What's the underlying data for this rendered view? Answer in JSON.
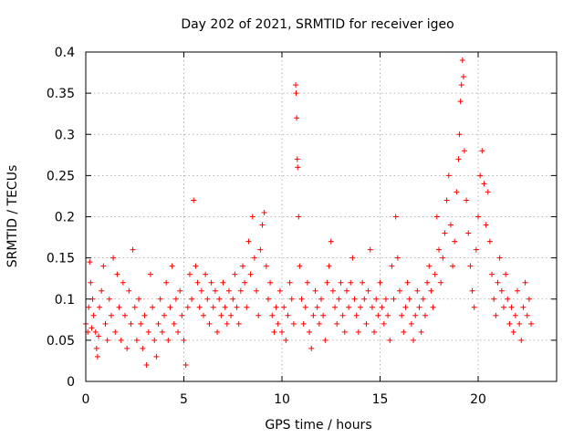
{
  "chart_data": {
    "type": "scatter",
    "title": "Day 202 of 2021, SRMTID for receiver igeo",
    "xlabel": "GPS time / hours",
    "ylabel": "SRMTID / TECUs",
    "xlim": [
      0,
      24
    ],
    "ylim": [
      0,
      0.4
    ],
    "x_ticks": [
      0,
      5,
      10,
      15,
      20
    ],
    "x_tick_labels": [
      "0",
      "5",
      "10",
      "15",
      "20"
    ],
    "y_ticks": [
      0,
      0.05,
      0.1,
      0.15,
      0.2,
      0.25,
      0.3,
      0.35,
      0.4
    ],
    "y_tick_labels": [
      "0",
      "0.05",
      "0.1",
      "0.15",
      "0.2",
      "0.25",
      "0.3",
      "0.35",
      "0.4"
    ],
    "grid": true,
    "marker": "+",
    "series": [
      {
        "name": "SRMTID",
        "color": "#ff0000",
        "points": [
          [
            0.0,
            0.07
          ],
          [
            0.1,
            0.06
          ],
          [
            0.15,
            0.09
          ],
          [
            0.2,
            0.145
          ],
          [
            0.25,
            0.12
          ],
          [
            0.3,
            0.065
          ],
          [
            0.35,
            0.1
          ],
          [
            0.4,
            0.08
          ],
          [
            0.5,
            0.06
          ],
          [
            0.55,
            0.04
          ],
          [
            0.6,
            0.03
          ],
          [
            0.65,
            0.055
          ],
          [
            0.7,
            0.09
          ],
          [
            0.8,
            0.11
          ],
          [
            0.9,
            0.14
          ],
          [
            1.0,
            0.07
          ],
          [
            1.1,
            0.05
          ],
          [
            1.2,
            0.1
          ],
          [
            1.3,
            0.08
          ],
          [
            1.4,
            0.15
          ],
          [
            1.5,
            0.06
          ],
          [
            1.6,
            0.13
          ],
          [
            1.7,
            0.09
          ],
          [
            1.8,
            0.05
          ],
          [
            1.9,
            0.12
          ],
          [
            2.0,
            0.08
          ],
          [
            2.1,
            0.04
          ],
          [
            2.2,
            0.11
          ],
          [
            2.3,
            0.07
          ],
          [
            2.4,
            0.16
          ],
          [
            2.5,
            0.09
          ],
          [
            2.6,
            0.05
          ],
          [
            2.7,
            0.1
          ],
          [
            2.8,
            0.07
          ],
          [
            2.9,
            0.04
          ],
          [
            3.0,
            0.08
          ],
          [
            3.1,
            0.02
          ],
          [
            3.2,
            0.06
          ],
          [
            3.3,
            0.13
          ],
          [
            3.4,
            0.09
          ],
          [
            3.5,
            0.05
          ],
          [
            3.6,
            0.03
          ],
          [
            3.7,
            0.07
          ],
          [
            3.8,
            0.1
          ],
          [
            3.9,
            0.06
          ],
          [
            4.0,
            0.08
          ],
          [
            4.1,
            0.12
          ],
          [
            4.2,
            0.05
          ],
          [
            4.3,
            0.09
          ],
          [
            4.4,
            0.14
          ],
          [
            4.5,
            0.07
          ],
          [
            4.6,
            0.1
          ],
          [
            4.7,
            0.06
          ],
          [
            4.8,
            0.11
          ],
          [
            4.9,
            0.08
          ],
          [
            5.0,
            0.05
          ],
          [
            5.1,
            0.02
          ],
          [
            5.2,
            0.09
          ],
          [
            5.3,
            0.13
          ],
          [
            5.4,
            0.1
          ],
          [
            5.5,
            0.22
          ],
          [
            5.6,
            0.14
          ],
          [
            5.7,
            0.12
          ],
          [
            5.8,
            0.09
          ],
          [
            5.9,
            0.11
          ],
          [
            6.0,
            0.08
          ],
          [
            6.1,
            0.13
          ],
          [
            6.2,
            0.1
          ],
          [
            6.3,
            0.07
          ],
          [
            6.4,
            0.12
          ],
          [
            6.5,
            0.09
          ],
          [
            6.6,
            0.11
          ],
          [
            6.7,
            0.06
          ],
          [
            6.8,
            0.1
          ],
          [
            6.9,
            0.08
          ],
          [
            7.0,
            0.12
          ],
          [
            7.1,
            0.09
          ],
          [
            7.2,
            0.07
          ],
          [
            7.3,
            0.11
          ],
          [
            7.4,
            0.08
          ],
          [
            7.5,
            0.1
          ],
          [
            7.6,
            0.13
          ],
          [
            7.7,
            0.09
          ],
          [
            7.8,
            0.07
          ],
          [
            7.9,
            0.11
          ],
          [
            8.0,
            0.14
          ],
          [
            8.1,
            0.12
          ],
          [
            8.2,
            0.09
          ],
          [
            8.3,
            0.17
          ],
          [
            8.4,
            0.13
          ],
          [
            8.5,
            0.2
          ],
          [
            8.6,
            0.15
          ],
          [
            8.7,
            0.11
          ],
          [
            8.8,
            0.08
          ],
          [
            8.9,
            0.16
          ],
          [
            9.0,
            0.19
          ],
          [
            9.1,
            0.205
          ],
          [
            9.2,
            0.14
          ],
          [
            9.3,
            0.1
          ],
          [
            9.4,
            0.12
          ],
          [
            9.5,
            0.08
          ],
          [
            9.6,
            0.06
          ],
          [
            9.7,
            0.09
          ],
          [
            9.8,
            0.07
          ],
          [
            9.9,
            0.11
          ],
          [
            10.0,
            0.06
          ],
          [
            10.1,
            0.09
          ],
          [
            10.2,
            0.05
          ],
          [
            10.3,
            0.08
          ],
          [
            10.4,
            0.12
          ],
          [
            10.5,
            0.1
          ],
          [
            10.6,
            0.07
          ],
          [
            10.7,
            0.36
          ],
          [
            10.72,
            0.35
          ],
          [
            10.75,
            0.32
          ],
          [
            10.78,
            0.27
          ],
          [
            10.8,
            0.26
          ],
          [
            10.85,
            0.2
          ],
          [
            10.9,
            0.14
          ],
          [
            11.0,
            0.1
          ],
          [
            11.1,
            0.07
          ],
          [
            11.2,
            0.09
          ],
          [
            11.3,
            0.12
          ],
          [
            11.4,
            0.06
          ],
          [
            11.5,
            0.04
          ],
          [
            11.6,
            0.08
          ],
          [
            11.7,
            0.11
          ],
          [
            11.8,
            0.09
          ],
          [
            11.9,
            0.07
          ],
          [
            12.0,
            0.1
          ],
          [
            12.1,
            0.08
          ],
          [
            12.2,
            0.05
          ],
          [
            12.3,
            0.12
          ],
          [
            12.4,
            0.14
          ],
          [
            12.5,
            0.17
          ],
          [
            12.6,
            0.11
          ],
          [
            12.7,
            0.09
          ],
          [
            12.8,
            0.07
          ],
          [
            12.9,
            0.1
          ],
          [
            13.0,
            0.12
          ],
          [
            13.1,
            0.08
          ],
          [
            13.2,
            0.06
          ],
          [
            13.3,
            0.11
          ],
          [
            13.4,
            0.09
          ],
          [
            13.5,
            0.12
          ],
          [
            13.6,
            0.15
          ],
          [
            13.7,
            0.1
          ],
          [
            13.8,
            0.08
          ],
          [
            13.9,
            0.06
          ],
          [
            14.0,
            0.09
          ],
          [
            14.1,
            0.12
          ],
          [
            14.2,
            0.1
          ],
          [
            14.3,
            0.07
          ],
          [
            14.4,
            0.11
          ],
          [
            14.5,
            0.16
          ],
          [
            14.6,
            0.09
          ],
          [
            14.7,
            0.06
          ],
          [
            14.8,
            0.1
          ],
          [
            14.9,
            0.08
          ],
          [
            15.0,
            0.12
          ],
          [
            15.1,
            0.09
          ],
          [
            15.2,
            0.07
          ],
          [
            15.3,
            0.1
          ],
          [
            15.4,
            0.08
          ],
          [
            15.5,
            0.05
          ],
          [
            15.6,
            0.14
          ],
          [
            15.7,
            0.1
          ],
          [
            15.8,
            0.2
          ],
          [
            15.9,
            0.15
          ],
          [
            16.0,
            0.11
          ],
          [
            16.1,
            0.08
          ],
          [
            16.2,
            0.06
          ],
          [
            16.3,
            0.09
          ],
          [
            16.4,
            0.12
          ],
          [
            16.5,
            0.1
          ],
          [
            16.6,
            0.07
          ],
          [
            16.7,
            0.05
          ],
          [
            16.8,
            0.08
          ],
          [
            16.9,
            0.11
          ],
          [
            17.0,
            0.09
          ],
          [
            17.1,
            0.06
          ],
          [
            17.2,
            0.1
          ],
          [
            17.3,
            0.08
          ],
          [
            17.4,
            0.12
          ],
          [
            17.5,
            0.14
          ],
          [
            17.6,
            0.11
          ],
          [
            17.7,
            0.09
          ],
          [
            17.8,
            0.13
          ],
          [
            17.9,
            0.2
          ],
          [
            18.0,
            0.16
          ],
          [
            18.1,
            0.12
          ],
          [
            18.2,
            0.15
          ],
          [
            18.3,
            0.18
          ],
          [
            18.4,
            0.22
          ],
          [
            18.5,
            0.25
          ],
          [
            18.6,
            0.19
          ],
          [
            18.7,
            0.14
          ],
          [
            18.8,
            0.17
          ],
          [
            18.9,
            0.23
          ],
          [
            19.0,
            0.27
          ],
          [
            19.05,
            0.3
          ],
          [
            19.1,
            0.34
          ],
          [
            19.15,
            0.36
          ],
          [
            19.2,
            0.39
          ],
          [
            19.25,
            0.37
          ],
          [
            19.3,
            0.28
          ],
          [
            19.4,
            0.22
          ],
          [
            19.5,
            0.18
          ],
          [
            19.6,
            0.14
          ],
          [
            19.7,
            0.11
          ],
          [
            19.8,
            0.09
          ],
          [
            19.9,
            0.16
          ],
          [
            20.0,
            0.2
          ],
          [
            20.1,
            0.25
          ],
          [
            20.2,
            0.28
          ],
          [
            20.3,
            0.24
          ],
          [
            20.4,
            0.19
          ],
          [
            20.5,
            0.23
          ],
          [
            20.6,
            0.17
          ],
          [
            20.7,
            0.13
          ],
          [
            20.8,
            0.1
          ],
          [
            20.9,
            0.08
          ],
          [
            21.0,
            0.12
          ],
          [
            21.1,
            0.15
          ],
          [
            21.2,
            0.11
          ],
          [
            21.3,
            0.09
          ],
          [
            21.4,
            0.13
          ],
          [
            21.5,
            0.1
          ],
          [
            21.6,
            0.07
          ],
          [
            21.7,
            0.09
          ],
          [
            21.8,
            0.06
          ],
          [
            21.9,
            0.08
          ],
          [
            22.0,
            0.11
          ],
          [
            22.1,
            0.07
          ],
          [
            22.2,
            0.05
          ],
          [
            22.3,
            0.09
          ],
          [
            22.4,
            0.12
          ],
          [
            22.5,
            0.08
          ],
          [
            22.6,
            0.1
          ],
          [
            22.7,
            0.07
          ]
        ]
      }
    ]
  }
}
